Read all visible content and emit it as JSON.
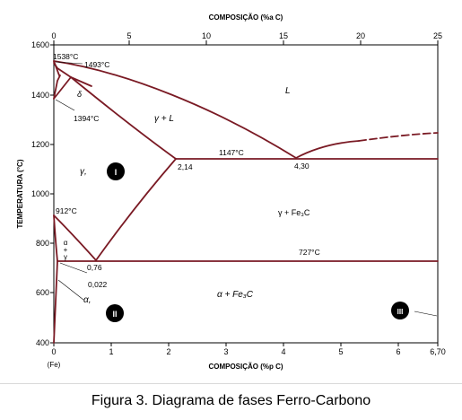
{
  "diagram": {
    "top_axis": {
      "label": "COMPOSIÇÃO (%a C)",
      "ticks": [
        "0",
        "5",
        "10",
        "15",
        "20",
        "25"
      ]
    },
    "bottom_axis": {
      "label": "COMPOSIÇÃO (%p C)",
      "ticks": [
        "0",
        "1",
        "2",
        "3",
        "4",
        "5",
        "6",
        "6,70"
      ],
      "sublabel": "(Fe)"
    },
    "left_axis": {
      "label": "TEMPERATURA (°C)",
      "ticks": [
        "1600",
        "1400",
        "1200",
        "1000",
        "800",
        "600",
        "400"
      ]
    },
    "annotations": {
      "t1538": "1538°C",
      "t1493": "1493°C",
      "t1394": "1394°C",
      "t1147": "1147°C",
      "t912": "912°C",
      "t727": "727°C",
      "c214": "2,14",
      "c430": "4,30",
      "c076": "0,76",
      "c0022": "0,022"
    },
    "phases": {
      "L": "L",
      "delta": "δ",
      "gamma_L": "γ + L",
      "gamma": "γ,",
      "gamma_fe3c": "γ + Fe₃C",
      "alpha_fe3c": "α + Fe₃C",
      "alpha": "α,",
      "alpha_gamma": [
        "α",
        "+",
        "γ"
      ]
    },
    "markers": [
      "I",
      "II",
      "III"
    ]
  },
  "caption": "Figura 3. Diagrama de fases Ferro-Carbono",
  "colors": {
    "phase_line": "#7a1a24",
    "axis": "#000000",
    "marker": "#000000"
  }
}
